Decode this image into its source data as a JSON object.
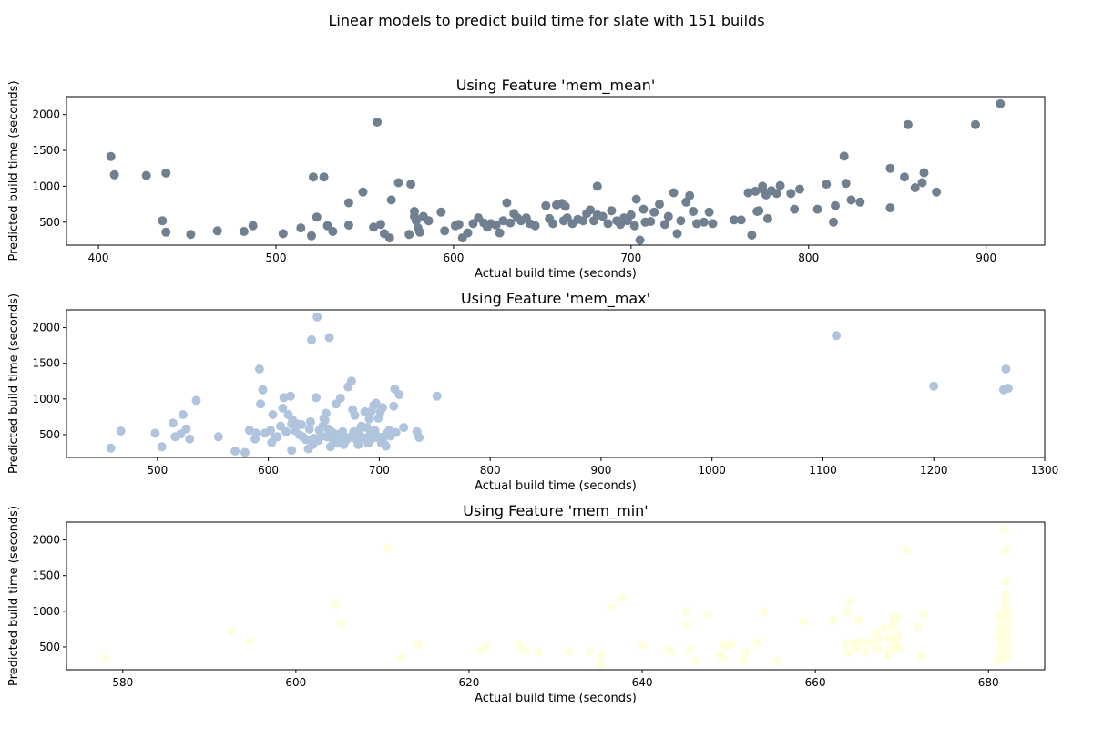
{
  "suptitle": "Linear models to predict build time for slate with 151 builds",
  "chart_data": [
    {
      "type": "scatter",
      "title": "Using Feature 'mem_mean'",
      "xlabel": "Actual build time (seconds)",
      "ylabel": "Predicted build time (seconds)",
      "color": "#708090",
      "xlim": [
        382,
        933
      ],
      "ylim": [
        180,
        2250
      ],
      "xticks": [
        400,
        500,
        600,
        700,
        800,
        900
      ],
      "yticks": [
        500,
        1000,
        1500,
        2000
      ],
      "points": [
        [
          407,
          1415
        ],
        [
          409,
          1160
        ],
        [
          427,
          1150
        ],
        [
          436,
          520
        ],
        [
          438,
          1185
        ],
        [
          438,
          360
        ],
        [
          452,
          330
        ],
        [
          467,
          380
        ],
        [
          482,
          370
        ],
        [
          487,
          450
        ],
        [
          504,
          340
        ],
        [
          514,
          420
        ],
        [
          520,
          310
        ],
        [
          521,
          1130
        ],
        [
          523,
          570
        ],
        [
          527,
          1130
        ],
        [
          529,
          450
        ],
        [
          532,
          370
        ],
        [
          541,
          770
        ],
        [
          541,
          460
        ],
        [
          549,
          920
        ],
        [
          555,
          430
        ],
        [
          557,
          1895
        ],
        [
          559,
          470
        ],
        [
          561,
          340
        ],
        [
          564,
          280
        ],
        [
          565,
          810
        ],
        [
          569,
          1050
        ],
        [
          576,
          1030
        ],
        [
          575,
          330
        ],
        [
          578,
          650
        ],
        [
          578,
          580
        ],
        [
          579,
          520
        ],
        [
          580,
          420
        ],
        [
          581,
          360
        ],
        [
          583,
          580
        ],
        [
          586,
          520
        ],
        [
          593,
          640
        ],
        [
          595,
          380
        ],
        [
          601,
          450
        ],
        [
          603,
          470
        ],
        [
          605,
          280
        ],
        [
          608,
          350
        ],
        [
          611,
          480
        ],
        [
          614,
          560
        ],
        [
          617,
          490
        ],
        [
          619,
          430
        ],
        [
          621,
          480
        ],
        [
          624,
          460
        ],
        [
          626,
          350
        ],
        [
          628,
          520
        ],
        [
          630,
          770
        ],
        [
          632,
          490
        ],
        [
          634,
          620
        ],
        [
          636,
          560
        ],
        [
          638,
          520
        ],
        [
          641,
          560
        ],
        [
          643,
          480
        ],
        [
          646,
          450
        ],
        [
          652,
          730
        ],
        [
          654,
          550
        ],
        [
          656,
          480
        ],
        [
          658,
          740
        ],
        [
          661,
          760
        ],
        [
          662,
          520
        ],
        [
          663,
          720
        ],
        [
          664,
          560
        ],
        [
          667,
          480
        ],
        [
          670,
          540
        ],
        [
          673,
          520
        ],
        [
          675,
          620
        ],
        [
          677,
          670
        ],
        [
          679,
          520
        ],
        [
          681,
          1000
        ],
        [
          681,
          600
        ],
        [
          684,
          580
        ],
        [
          687,
          480
        ],
        [
          689,
          660
        ],
        [
          692,
          520
        ],
        [
          694,
          470
        ],
        [
          696,
          560
        ],
        [
          698,
          520
        ],
        [
          700,
          600
        ],
        [
          702,
          450
        ],
        [
          703,
          820
        ],
        [
          705,
          250
        ],
        [
          707,
          680
        ],
        [
          708,
          500
        ],
        [
          711,
          510
        ],
        [
          713,
          640
        ],
        [
          716,
          750
        ],
        [
          719,
          470
        ],
        [
          721,
          580
        ],
        [
          724,
          910
        ],
        [
          726,
          340
        ],
        [
          728,
          520
        ],
        [
          731,
          780
        ],
        [
          733,
          870
        ],
        [
          735,
          650
        ],
        [
          737,
          480
        ],
        [
          741,
          500
        ],
        [
          744,
          640
        ],
        [
          746,
          480
        ],
        [
          758,
          530
        ],
        [
          762,
          530
        ],
        [
          766,
          910
        ],
        [
          768,
          320
        ],
        [
          770,
          930
        ],
        [
          771,
          650
        ],
        [
          772,
          660
        ],
        [
          774,
          960
        ],
        [
          774,
          1000
        ],
        [
          776,
          880
        ],
        [
          777,
          550
        ],
        [
          779,
          940
        ],
        [
          782,
          900
        ],
        [
          784,
          1010
        ],
        [
          790,
          900
        ],
        [
          792,
          680
        ],
        [
          795,
          960
        ],
        [
          805,
          680
        ],
        [
          810,
          1030
        ],
        [
          814,
          500
        ],
        [
          815,
          730
        ],
        [
          820,
          1420
        ],
        [
          821,
          1040
        ],
        [
          824,
          810
        ],
        [
          829,
          780
        ],
        [
          846,
          1250
        ],
        [
          846,
          700
        ],
        [
          854,
          1130
        ],
        [
          856,
          1860
        ],
        [
          860,
          980
        ],
        [
          864,
          1050
        ],
        [
          865,
          1190
        ],
        [
          872,
          920
        ],
        [
          894,
          1860
        ],
        [
          908,
          2150
        ]
      ]
    },
    {
      "type": "scatter",
      "title": "Using Feature 'mem_max'",
      "xlabel": "Actual build time (seconds)",
      "ylabel": "Predicted build time (seconds)",
      "color": "#b0c4de",
      "xlim": [
        418,
        1300
      ],
      "ylim": [
        180,
        2250
      ],
      "xticks": [
        500,
        600,
        700,
        800,
        900,
        1000,
        1100,
        1200,
        1300
      ],
      "yticks": [
        500,
        1000,
        1500,
        2000
      ],
      "points": [
        [
          458,
          310
        ],
        [
          467,
          550
        ],
        [
          498,
          520
        ],
        [
          504,
          330
        ],
        [
          514,
          660
        ],
        [
          516,
          470
        ],
        [
          521,
          510
        ],
        [
          523,
          780
        ],
        [
          526,
          580
        ],
        [
          529,
          440
        ],
        [
          535,
          980
        ],
        [
          555,
          470
        ],
        [
          570,
          270
        ],
        [
          579,
          250
        ],
        [
          583,
          560
        ],
        [
          588,
          440
        ],
        [
          589,
          520
        ],
        [
          592,
          1420
        ],
        [
          593,
          930
        ],
        [
          595,
          1130
        ],
        [
          597,
          520
        ],
        [
          602,
          560
        ],
        [
          603,
          390
        ],
        [
          604,
          780
        ],
        [
          606,
          460
        ],
        [
          608,
          470
        ],
        [
          611,
          620
        ],
        [
          613,
          870
        ],
        [
          614,
          1020
        ],
        [
          616,
          540
        ],
        [
          618,
          780
        ],
        [
          620,
          1040
        ],
        [
          621,
          280
        ],
        [
          621,
          650
        ],
        [
          622,
          700
        ],
        [
          624,
          560
        ],
        [
          626,
          650
        ],
        [
          628,
          500
        ],
        [
          630,
          640
        ],
        [
          631,
          470
        ],
        [
          634,
          430
        ],
        [
          636,
          300
        ],
        [
          637,
          580
        ],
        [
          638,
          680
        ],
        [
          639,
          1830
        ],
        [
          640,
          360
        ],
        [
          641,
          450
        ],
        [
          643,
          1020
        ],
        [
          644,
          2150
        ],
        [
          645,
          420
        ],
        [
          646,
          560
        ],
        [
          648,
          480
        ],
        [
          649,
          620
        ],
        [
          650,
          730
        ],
        [
          651,
          700
        ],
        [
          652,
          800
        ],
        [
          653,
          470
        ],
        [
          654,
          580
        ],
        [
          655,
          1860
        ],
        [
          656,
          330
        ],
        [
          657,
          540
        ],
        [
          658,
          440
        ],
        [
          660,
          510
        ],
        [
          661,
          930
        ],
        [
          662,
          380
        ],
        [
          664,
          500
        ],
        [
          665,
          1010
        ],
        [
          666,
          440
        ],
        [
          667,
          540
        ],
        [
          668,
          360
        ],
        [
          669,
          460
        ],
        [
          670,
          420
        ],
        [
          672,
          1170
        ],
        [
          673,
          460
        ],
        [
          675,
          1250
        ],
        [
          676,
          850
        ],
        [
          677,
          540
        ],
        [
          678,
          770
        ],
        [
          679,
          480
        ],
        [
          680,
          420
        ],
        [
          681,
          360
        ],
        [
          682,
          470
        ],
        [
          683,
          580
        ],
        [
          684,
          620
        ],
        [
          685,
          460
        ],
        [
          687,
          820
        ],
        [
          688,
          450
        ],
        [
          689,
          600
        ],
        [
          690,
          380
        ],
        [
          691,
          720
        ],
        [
          692,
          510
        ],
        [
          693,
          830
        ],
        [
          694,
          450
        ],
        [
          695,
          910
        ],
        [
          696,
          560
        ],
        [
          697,
          940
        ],
        [
          698,
          480
        ],
        [
          699,
          730
        ],
        [
          700,
          450
        ],
        [
          701,
          820
        ],
        [
          702,
          380
        ],
        [
          703,
          880
        ],
        [
          704,
          470
        ],
        [
          705,
          360
        ],
        [
          706,
          340
        ],
        [
          707,
          520
        ],
        [
          708,
          510
        ],
        [
          709,
          560
        ],
        [
          710,
          480
        ],
        [
          712,
          520
        ],
        [
          713,
          900
        ],
        [
          714,
          1140
        ],
        [
          715,
          530
        ],
        [
          718,
          1060
        ],
        [
          722,
          600
        ],
        [
          734,
          540
        ],
        [
          736,
          460
        ],
        [
          752,
          1040
        ],
        [
          1112,
          1890
        ],
        [
          1200,
          1180
        ],
        [
          1263,
          1130
        ],
        [
          1264,
          1140
        ],
        [
          1265,
          1420
        ],
        [
          1267,
          1150
        ]
      ]
    },
    {
      "type": "scatter",
      "title": "Using Feature 'mem_min'",
      "xlabel": "Actual build time (seconds)",
      "ylabel": "Predicted build time (seconds)",
      "color": "#ffffe0",
      "xlim": [
        573.5,
        686.5
      ],
      "ylim": [
        180,
        2250
      ],
      "xticks": [
        580,
        600,
        620,
        640,
        660,
        680
      ],
      "yticks": [
        500,
        1000,
        1500,
        2000
      ],
      "points": [
        [
          578,
          340
        ],
        [
          592.5,
          720
        ],
        [
          594.7,
          580
        ],
        [
          604.5,
          1110
        ],
        [
          605.2,
          830
        ],
        [
          610.6,
          1890
        ],
        [
          612.1,
          350
        ],
        [
          614.1,
          530
        ],
        [
          621.3,
          450
        ],
        [
          622,
          520
        ],
        [
          625.8,
          530
        ],
        [
          626.5,
          450
        ],
        [
          628,
          420
        ],
        [
          631.5,
          440
        ],
        [
          634,
          440
        ],
        [
          635.2,
          260
        ],
        [
          635.3,
          390
        ],
        [
          636.4,
          1060
        ],
        [
          637.7,
          1180
        ],
        [
          640.1,
          530
        ],
        [
          643,
          460
        ],
        [
          643.4,
          430
        ],
        [
          645.1,
          1000
        ],
        [
          645.1,
          820
        ],
        [
          645.5,
          460
        ],
        [
          646.2,
          300
        ],
        [
          647.5,
          950
        ],
        [
          649,
          400
        ],
        [
          649.3,
          340
        ],
        [
          649.5,
          530
        ],
        [
          650,
          520
        ],
        [
          650.3,
          540
        ],
        [
          651.7,
          310
        ],
        [
          651.8,
          380
        ],
        [
          652,
          440
        ],
        [
          653.3,
          560
        ],
        [
          654,
          990
        ],
        [
          655.6,
          300
        ],
        [
          658.6,
          860
        ],
        [
          662.1,
          870
        ],
        [
          663.5,
          550
        ],
        [
          663.7,
          990
        ],
        [
          663.8,
          420
        ],
        [
          664,
          1130
        ],
        [
          664.5,
          560
        ],
        [
          664.7,
          490
        ],
        [
          665,
          870
        ],
        [
          665.4,
          570
        ],
        [
          665.8,
          430
        ],
        [
          666.3,
          560
        ],
        [
          667,
          680
        ],
        [
          667.2,
          470
        ],
        [
          667.3,
          600
        ],
        [
          668,
          760
        ],
        [
          668.4,
          390
        ],
        [
          668.5,
          630
        ],
        [
          668.7,
          480
        ],
        [
          669,
          930
        ],
        [
          669,
          800
        ],
        [
          669.2,
          560
        ],
        [
          669.3,
          470
        ],
        [
          669.5,
          640
        ],
        [
          669.5,
          900
        ],
        [
          669.7,
          480
        ],
        [
          670.5,
          1860
        ],
        [
          671.8,
          780
        ],
        [
          672.3,
          370
        ],
        [
          672.5,
          960
        ],
        [
          681,
          300
        ],
        [
          681.2,
          920
        ],
        [
          681.3,
          660
        ],
        [
          681.4,
          450
        ],
        [
          681.5,
          750
        ],
        [
          681.5,
          560
        ],
        [
          681.6,
          380
        ],
        [
          681.7,
          820
        ],
        [
          681.8,
          1030
        ],
        [
          681.9,
          2150
        ],
        [
          682,
          1860
        ],
        [
          682,
          1420
        ],
        [
          682,
          1250
        ],
        [
          682,
          1180
        ],
        [
          682,
          1100
        ],
        [
          682,
          990
        ],
        [
          682,
          870
        ],
        [
          682,
          700
        ],
        [
          682,
          610
        ],
        [
          682,
          500
        ],
        [
          682,
          420
        ],
        [
          682,
          340
        ],
        [
          682.1,
          800
        ],
        [
          682.1,
          640
        ],
        [
          682.1,
          470
        ],
        [
          682.2,
          1000
        ],
        [
          682.2,
          730
        ],
        [
          682.2,
          540
        ],
        [
          682.2,
          380
        ],
        [
          682.3,
          900
        ]
      ]
    }
  ]
}
